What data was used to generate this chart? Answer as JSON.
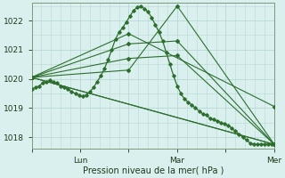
{
  "background_color": "#daf0ee",
  "grid_color": "#b8d8d4",
  "line_color": "#2d6e2d",
  "xlabel": "Pression niveau de la mer( hPa )",
  "ylim": [
    1017.6,
    1022.6
  ],
  "yticks": [
    1018,
    1019,
    1020,
    1021,
    1022
  ],
  "xtick_positions": [
    0,
    40,
    80,
    120,
    160,
    200
  ],
  "xtick_labels": [
    "",
    "Lun",
    "",
    "Mar",
    "",
    "Mer"
  ],
  "total_hours": 200,
  "lines": [
    {
      "x": [
        0,
        200
      ],
      "y": [
        1020.05,
        1017.75
      ]
    },
    {
      "x": [
        0,
        200
      ],
      "y": [
        1020.05,
        1017.75
      ]
    },
    {
      "x": [
        0,
        80,
        200
      ],
      "y": [
        1020.05,
        1021.55,
        1019.05
      ]
    },
    {
      "x": [
        0,
        80,
        120,
        200
      ],
      "y": [
        1020.05,
        1021.2,
        1021.3,
        1017.75
      ]
    },
    {
      "x": [
        0,
        80,
        120,
        200
      ],
      "y": [
        1020.05,
        1020.7,
        1020.8,
        1017.75
      ]
    },
    {
      "x": [
        0,
        80,
        120,
        200
      ],
      "y": [
        1020.05,
        1020.3,
        1022.5,
        1017.75
      ]
    }
  ],
  "detail_x": [
    0,
    3,
    6,
    9,
    12,
    15,
    18,
    21,
    24,
    27,
    30,
    33,
    36,
    39,
    42,
    45,
    48,
    51,
    54,
    57,
    60,
    63,
    66,
    69,
    72,
    75,
    78,
    81,
    84,
    87,
    90,
    93,
    96,
    99,
    102,
    105,
    108,
    111,
    114,
    117,
    120,
    123,
    126,
    129,
    132,
    135,
    138,
    141,
    144,
    147,
    150,
    153,
    156,
    159,
    162,
    165,
    168,
    171,
    174,
    177,
    180,
    183,
    186,
    189,
    192,
    195,
    198,
    200
  ],
  "detail_y": [
    1019.65,
    1019.7,
    1019.75,
    1019.85,
    1019.9,
    1019.95,
    1019.9,
    1019.85,
    1019.75,
    1019.7,
    1019.65,
    1019.55,
    1019.5,
    1019.45,
    1019.4,
    1019.45,
    1019.55,
    1019.7,
    1019.9,
    1020.1,
    1020.35,
    1020.65,
    1021.0,
    1021.35,
    1021.6,
    1021.75,
    1021.95,
    1022.15,
    1022.35,
    1022.45,
    1022.5,
    1022.4,
    1022.3,
    1022.1,
    1021.85,
    1021.6,
    1021.3,
    1020.9,
    1020.5,
    1020.1,
    1019.75,
    1019.5,
    1019.3,
    1019.2,
    1019.1,
    1019.0,
    1018.9,
    1018.8,
    1018.75,
    1018.65,
    1018.6,
    1018.55,
    1018.5,
    1018.45,
    1018.4,
    1018.3,
    1018.2,
    1018.1,
    1018.0,
    1017.9,
    1017.8,
    1017.75,
    1017.75,
    1017.75,
    1017.75,
    1017.75,
    1017.75,
    1017.75
  ]
}
